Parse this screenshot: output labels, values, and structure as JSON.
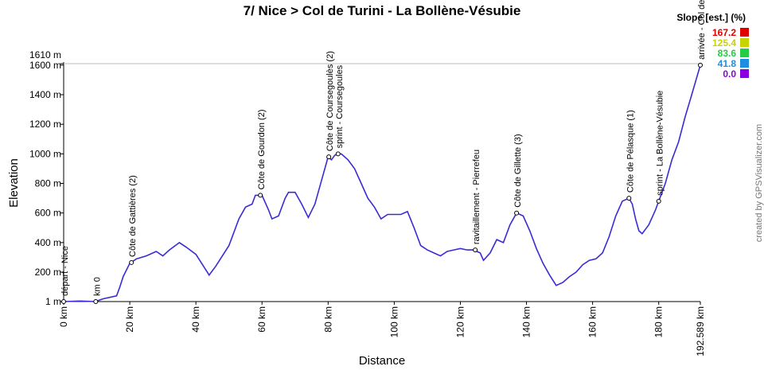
{
  "chart_data": {
    "type": "line",
    "title": "7/ Nice > Col de Turini - La Bollène-Vésubie",
    "x_label": "Distance",
    "y_label": "Elevation",
    "credit": "created by GPSVisualizer.com",
    "xlim": [
      0,
      192.589
    ],
    "xticks": [
      {
        "value": 0,
        "label": "0 km"
      },
      {
        "value": 20,
        "label": "20 km"
      },
      {
        "value": 40,
        "label": "40 km"
      },
      {
        "value": 60,
        "label": "60 km"
      },
      {
        "value": 80,
        "label": "80 km"
      },
      {
        "value": 100,
        "label": "100 km"
      },
      {
        "value": 120,
        "label": "120 km"
      },
      {
        "value": 140,
        "label": "140 km"
      },
      {
        "value": 160,
        "label": "160 km"
      },
      {
        "value": 180,
        "label": "180 km"
      },
      {
        "value": 192.589,
        "label": "192.589 km"
      }
    ],
    "ylim": [
      1,
      1610
    ],
    "yticks": [
      {
        "value": 1,
        "label": "1 m"
      },
      {
        "value": 200,
        "label": "200 m"
      },
      {
        "value": 400,
        "label": "400 m"
      },
      {
        "value": 600,
        "label": "600 m"
      },
      {
        "value": 800,
        "label": "800 m"
      },
      {
        "value": 1000,
        "label": "1000 m"
      },
      {
        "value": 1200,
        "label": "1200 m"
      },
      {
        "value": 1400,
        "label": "1400 m"
      },
      {
        "value": 1600,
        "label": "1600 m"
      },
      {
        "value": 1610,
        "label": "1610 m"
      }
    ],
    "series": [
      {
        "name": "Elevation",
        "color": "#3a2bd6",
        "x": [
          0,
          5,
          9.5,
          12,
          16,
          17,
          18,
          20,
          22,
          25,
          28,
          30,
          32,
          35,
          37,
          40,
          42,
          44,
          46,
          50,
          53,
          55,
          57,
          58,
          60,
          62,
          63,
          65,
          67,
          68,
          70,
          72,
          74,
          76,
          78,
          80,
          81,
          82,
          83,
          84,
          86,
          88,
          90,
          92,
          94,
          96,
          98,
          100,
          102,
          104,
          106,
          108,
          110,
          112,
          114,
          116,
          118,
          120,
          122,
          124,
          126,
          127,
          129,
          131,
          133,
          135,
          137,
          139,
          141,
          143,
          145,
          147,
          149,
          151,
          153,
          155,
          157,
          159,
          161,
          163,
          165,
          167,
          169,
          171,
          172,
          173,
          174,
          175,
          177,
          179,
          180,
          182,
          184,
          186,
          188,
          190,
          192.589
        ],
        "values": [
          1,
          5,
          1,
          20,
          40,
          100,
          170,
          260,
          290,
          310,
          340,
          310,
          350,
          400,
          370,
          320,
          250,
          180,
          240,
          380,
          560,
          640,
          660,
          720,
          720,
          620,
          560,
          580,
          700,
          740,
          740,
          660,
          570,
          660,
          820,
          980,
          960,
          990,
          1000,
          1000,
          960,
          900,
          800,
          700,
          640,
          560,
          590,
          590,
          590,
          610,
          500,
          380,
          350,
          330,
          310,
          340,
          350,
          360,
          350,
          350,
          330,
          280,
          330,
          420,
          400,
          520,
          600,
          580,
          480,
          360,
          260,
          180,
          110,
          130,
          170,
          200,
          250,
          280,
          290,
          330,
          440,
          580,
          680,
          700,
          660,
          560,
          480,
          460,
          520,
          620,
          680,
          800,
          960,
          1080,
          1250,
          1400,
          1600
        ]
      }
    ],
    "waypoints": [
      {
        "name": "départ - Nice",
        "x": 0,
        "y": 1
      },
      {
        "name": "km 0",
        "x": 9.7,
        "y": 1
      },
      {
        "name": "Côte de Gattières (2)",
        "x": 20.5,
        "y": 265
      },
      {
        "name": "Côte de Gourdon (2)",
        "x": 59.5,
        "y": 720
      },
      {
        "name": "Côte de Coursegoulès (2)",
        "x": 80.2,
        "y": 980
      },
      {
        "name": "sprint - Coursegoules",
        "x": 83,
        "y": 1000
      },
      {
        "name": "ravitaillement - Pierrefeu",
        "x": 124.5,
        "y": 350
      },
      {
        "name": "Côte de Gillette (3)",
        "x": 137,
        "y": 600
      },
      {
        "name": "Côte de Pélasque (1)",
        "x": 171,
        "y": 700
      },
      {
        "name": "sprint - La Bollène-Vésubie",
        "x": 180,
        "y": 680
      },
      {
        "name": "arrivée - Col de Turini",
        "x": 192.589,
        "y": 1600
      }
    ],
    "slope_legend": {
      "title": "Slope [est.] (%)",
      "values": [
        167.2,
        125.4,
        83.6,
        41.8,
        0
      ],
      "value_labels": [
        "167.2",
        "125.4",
        "83.6",
        "41.8",
        "0.0"
      ],
      "colors": [
        "#e00000",
        "#c8d400",
        "#22cc44",
        "#1e8ee0",
        "#8a00e0"
      ]
    }
  }
}
